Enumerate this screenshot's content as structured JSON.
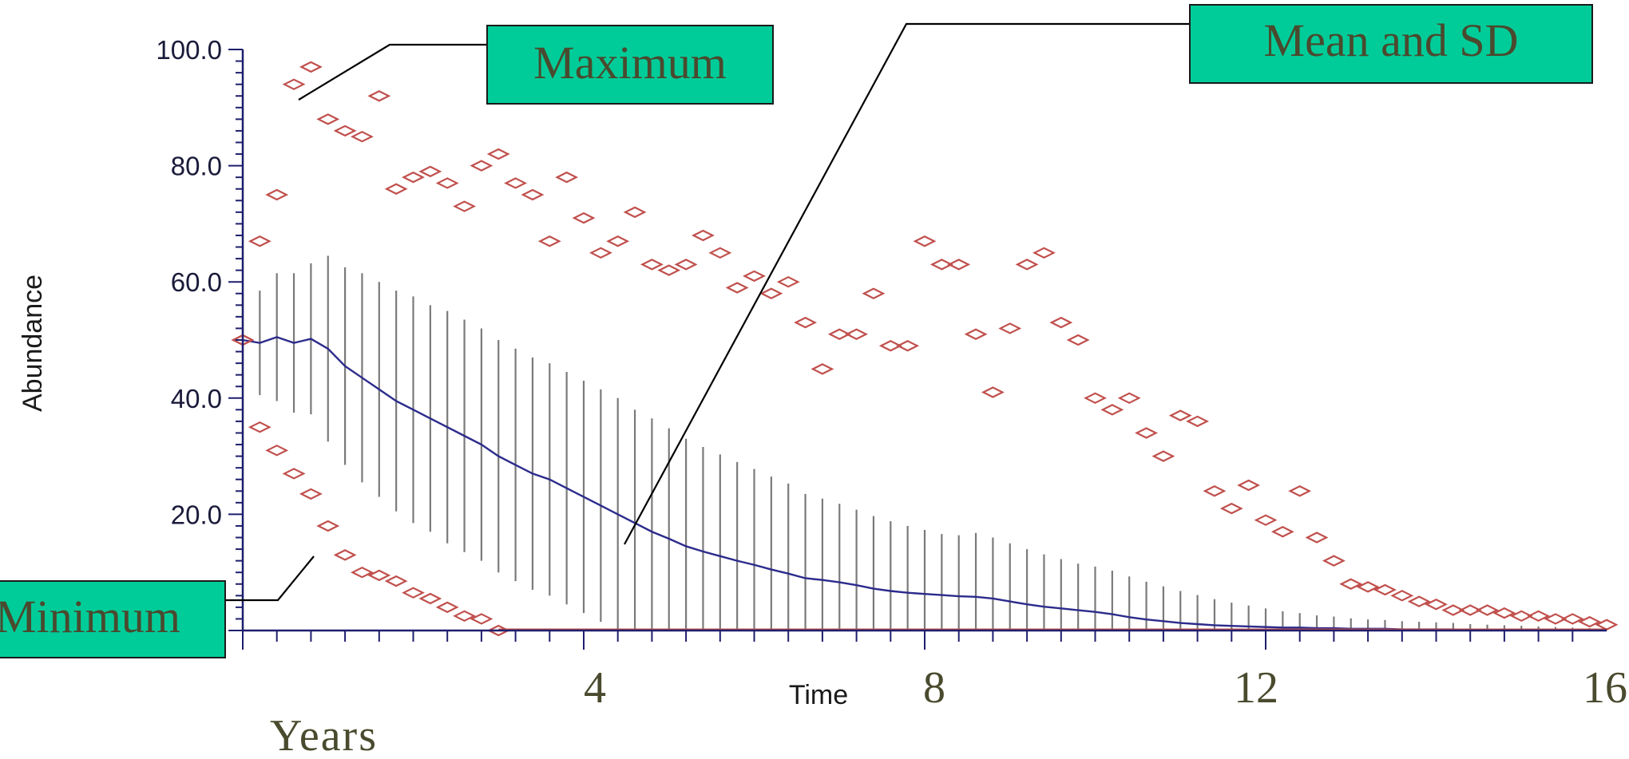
{
  "chart_data": {
    "type": "line",
    "ylabel": "Abundance",
    "xlabel": "Time",
    "x_unit_label": "Years",
    "ylim": [
      0,
      100
    ],
    "xlim": [
      0,
      16
    ],
    "yticks": [
      "100.0",
      "80.0",
      "60.0",
      "40.0",
      "20.0"
    ],
    "ytick_values": [
      100,
      80,
      60,
      40,
      20
    ],
    "xticks": [
      "4",
      "8",
      "12",
      "16"
    ],
    "xtick_values": [
      4,
      8,
      12,
      16
    ],
    "grid": false,
    "annotations": {
      "maximum": "Maximum",
      "minimum": "Minimum",
      "mean_sd": "Mean and SD"
    },
    "colors": {
      "mean": "#2b2b8c",
      "sd": "#7a7a7a",
      "minmax": "#c0504d",
      "axis": "#1e1e6e",
      "callout_fill": "#00cc99",
      "callout_text": "#4a4a2e"
    },
    "mean_sd": {
      "x": [
        0,
        0.2,
        0.4,
        0.6,
        0.8,
        1.0,
        1.2,
        1.4,
        1.6,
        1.8,
        2.0,
        2.2,
        2.4,
        2.6,
        2.8,
        3.0,
        3.2,
        3.4,
        3.6,
        3.8,
        4.0,
        4.2,
        4.4,
        4.6,
        4.8,
        5.0,
        5.2,
        5.4,
        5.6,
        5.8,
        6.0,
        6.2,
        6.4,
        6.6,
        6.8,
        7.0,
        7.2,
        7.4,
        7.6,
        7.8,
        8.0,
        8.2,
        8.4,
        8.6,
        8.8,
        9.0,
        9.2,
        9.4,
        9.6,
        9.8,
        10.0,
        10.2,
        10.4,
        10.6,
        10.8,
        11.0,
        11.2,
        11.4,
        11.6,
        11.8,
        12.0,
        12.2,
        12.4,
        12.6,
        12.8,
        13.0,
        13.2,
        13.4,
        13.6,
        13.8,
        14.0,
        14.2,
        14.4,
        14.6,
        14.8,
        15.0,
        15.2,
        15.4,
        15.6,
        15.8,
        16.0
      ],
      "mean": [
        50,
        49.5,
        50.5,
        49.5,
        50.2,
        48.5,
        45.5,
        43.5,
        41.5,
        39.5,
        38,
        36.5,
        35,
        33.5,
        32,
        30,
        28.5,
        27,
        26,
        24.5,
        23,
        21.5,
        20,
        18.5,
        17,
        15.8,
        14.5,
        13.6,
        12.8,
        12,
        11.3,
        10.5,
        9.8,
        9,
        8.7,
        8.3,
        7.8,
        7.2,
        6.8,
        6.5,
        6.3,
        6.1,
        5.9,
        5.8,
        5.5,
        5,
        4.5,
        4.1,
        3.8,
        3.5,
        3.2,
        2.8,
        2.3,
        1.9,
        1.6,
        1.3,
        1.1,
        0.9,
        0.8,
        0.7,
        0.6,
        0.5,
        0.5,
        0.4,
        0.4,
        0.3,
        0.3,
        0.3,
        0.2,
        0.2,
        0.2,
        0.2,
        0.1,
        0.1,
        0.1,
        0.1,
        0.1,
        0.1,
        0.1,
        0.1,
        0.1
      ],
      "sd": [
        8,
        9,
        11,
        12,
        13,
        16,
        17,
        18,
        18.5,
        19,
        19.5,
        19.5,
        20,
        20,
        20,
        20,
        20,
        20,
        20,
        20,
        20,
        20,
        20,
        19.5,
        19.5,
        19,
        18.5,
        18,
        17.5,
        17,
        16.5,
        16,
        15.5,
        14.5,
        14,
        13.5,
        13,
        12.5,
        12,
        11.5,
        11,
        10.5,
        10.5,
        11,
        10.5,
        10,
        9.5,
        9,
        8.5,
        8,
        7.8,
        7.5,
        7,
        6.5,
        6,
        5.5,
        5,
        4.5,
        4,
        3.6,
        3.2,
        2.8,
        2.5,
        2.2,
        2,
        1.8,
        1.6,
        1.5,
        1.4,
        1.3,
        1.2,
        1.1,
        1,
        0.9,
        0.8,
        0.7,
        0.6,
        0.5,
        0.4,
        0.3,
        0.3
      ]
    },
    "maximum": {
      "x": [
        0,
        0.2,
        0.4,
        0.6,
        0.8,
        1.0,
        1.2,
        1.4,
        1.6,
        1.8,
        2.0,
        2.2,
        2.4,
        2.6,
        2.8,
        3.0,
        3.2,
        3.4,
        3.6,
        3.8,
        4.0,
        4.2,
        4.4,
        4.6,
        4.8,
        5.0,
        5.2,
        5.4,
        5.6,
        5.8,
        6.0,
        6.2,
        6.4,
        6.6,
        6.8,
        7.0,
        7.2,
        7.4,
        7.6,
        7.8,
        8.0,
        8.2,
        8.4,
        8.6,
        8.8,
        9.0,
        9.2,
        9.4,
        9.6,
        9.8,
        10.0,
        10.2,
        10.4,
        10.6,
        10.8,
        11.0,
        11.2,
        11.4,
        11.6,
        11.8,
        12.0,
        12.2,
        12.4,
        12.6,
        12.8,
        13.0,
        13.2,
        13.4,
        13.6,
        13.8,
        14.0,
        14.2,
        14.4,
        14.6,
        14.8,
        15.0,
        15.2,
        15.4,
        15.6,
        15.8,
        16.0
      ],
      "y": [
        50,
        67,
        75,
        94,
        97,
        88,
        86,
        85,
        92,
        76,
        78,
        79,
        77,
        73,
        80,
        82,
        77,
        75,
        67,
        78,
        71,
        65,
        67,
        72,
        63,
        62,
        63,
        68,
        65,
        59,
        61,
        58,
        60,
        53,
        45,
        51,
        51,
        58,
        49,
        49,
        67,
        63,
        63,
        51,
        41,
        52,
        63,
        65,
        53,
        50,
        40,
        38,
        40,
        34,
        30,
        37,
        36,
        24,
        21,
        25,
        19,
        17,
        24,
        16,
        12,
        8,
        7.5,
        7,
        6,
        5,
        4.5,
        3.5,
        3.5,
        3.5,
        3,
        2.5,
        2.5,
        2,
        2,
        1.5,
        1
      ]
    },
    "minimum": {
      "x": [
        0,
        0.2,
        0.4,
        0.6,
        0.8,
        1.0,
        1.2,
        1.4,
        1.6,
        1.8,
        2.0,
        2.2,
        2.4,
        2.6,
        2.8,
        3.0
      ],
      "y": [
        50,
        35,
        31,
        27,
        23.5,
        18,
        13,
        10,
        9.5,
        8.5,
        6.5,
        5.5,
        4,
        2.5,
        2,
        0
      ]
    }
  }
}
